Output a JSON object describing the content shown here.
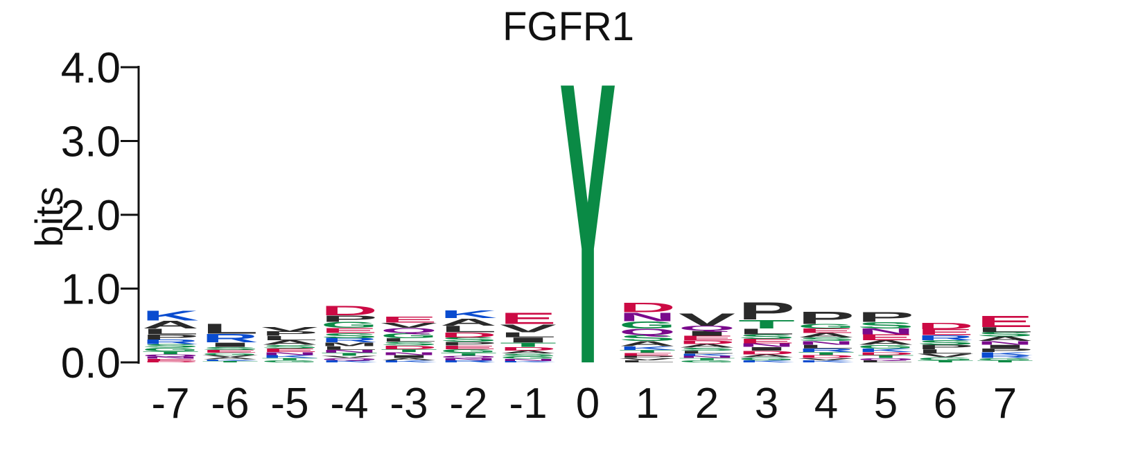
{
  "chart_data": {
    "type": "sequence-logo",
    "title": "FGFR1",
    "ylabel": "bits",
    "ylim": [
      0,
      4.0
    ],
    "yticks": [
      "0.0",
      "1.0",
      "2.0",
      "3.0",
      "4.0"
    ],
    "positions": [
      "-7",
      "-6",
      "-5",
      "-4",
      "-3",
      "-2",
      "-1",
      "0",
      "1",
      "2",
      "3",
      "4",
      "5",
      "6",
      "7"
    ],
    "color_scheme": {
      "hydrophobic": "#2a2a2a",
      "polar": "#0a8a45",
      "amide": "#7a0a8c",
      "basic": "#0a4ccf",
      "acidic": "#cc0a44"
    },
    "stacks": [
      {
        "position": "-7",
        "letters": [
          {
            "a": "K",
            "h": 0.14
          },
          {
            "a": "A",
            "h": 0.11
          },
          {
            "a": "L",
            "h": 0.08
          },
          {
            "a": "P",
            "h": 0.07
          },
          {
            "a": "R",
            "h": 0.06
          },
          {
            "a": "G",
            "h": 0.05
          },
          {
            "a": "S",
            "h": 0.05
          },
          {
            "a": "T",
            "h": 0.04
          },
          {
            "a": "E",
            "h": 0.03
          },
          {
            "a": "N",
            "h": 0.03
          },
          {
            "a": "Q",
            "h": 0.03
          },
          {
            "a": "D",
            "h": 0.02
          }
        ]
      },
      {
        "position": "-6",
        "letters": [
          {
            "a": "L",
            "h": 0.14
          },
          {
            "a": "R",
            "h": 0.12
          },
          {
            "a": "I",
            "h": 0.06
          },
          {
            "a": "E",
            "h": 0.04
          },
          {
            "a": "S",
            "h": 0.04
          },
          {
            "a": "A",
            "h": 0.03
          },
          {
            "a": "V",
            "h": 0.03
          },
          {
            "a": "G",
            "h": 0.03
          },
          {
            "a": "T",
            "h": 0.02
          },
          {
            "a": "K",
            "h": 0.02
          }
        ]
      },
      {
        "position": "-5",
        "letters": [
          {
            "a": "A",
            "h": 0.06
          },
          {
            "a": "L",
            "h": 0.06
          },
          {
            "a": "P",
            "h": 0.06
          },
          {
            "a": "V",
            "h": 0.06
          },
          {
            "a": "E",
            "h": 0.05
          },
          {
            "a": "S",
            "h": 0.05
          },
          {
            "a": "K",
            "h": 0.04
          },
          {
            "a": "N",
            "h": 0.04
          },
          {
            "a": "G",
            "h": 0.03
          },
          {
            "a": "T",
            "h": 0.03
          }
        ]
      },
      {
        "position": "-4",
        "letters": [
          {
            "a": "D",
            "h": 0.13
          },
          {
            "a": "P",
            "h": 0.09
          },
          {
            "a": "G",
            "h": 0.08
          },
          {
            "a": "S",
            "h": 0.07
          },
          {
            "a": "E",
            "h": 0.07
          },
          {
            "a": "R",
            "h": 0.06
          },
          {
            "a": "L",
            "h": 0.05
          },
          {
            "a": "M",
            "h": 0.05
          },
          {
            "a": "T",
            "h": 0.04
          },
          {
            "a": "N",
            "h": 0.04
          },
          {
            "a": "K",
            "h": 0.03
          },
          {
            "a": "Q",
            "h": 0.03
          },
          {
            "a": "V",
            "h": 0.03
          }
        ]
      },
      {
        "position": "-3",
        "letters": [
          {
            "a": "E",
            "h": 0.08
          },
          {
            "a": "G",
            "h": 0.07
          },
          {
            "a": "Q",
            "h": 0.07
          },
          {
            "a": "V",
            "h": 0.07
          },
          {
            "a": "D",
            "h": 0.05
          },
          {
            "a": "S",
            "h": 0.05
          },
          {
            "a": "L",
            "h": 0.05
          },
          {
            "a": "I",
            "h": 0.04
          },
          {
            "a": "N",
            "h": 0.04
          },
          {
            "a": "T",
            "h": 0.04
          },
          {
            "a": "K",
            "h": 0.03
          },
          {
            "a": "A",
            "h": 0.03
          }
        ]
      },
      {
        "position": "-2",
        "letters": [
          {
            "a": "A",
            "h": 0.1
          },
          {
            "a": "K",
            "h": 0.11
          },
          {
            "a": "L",
            "h": 0.09
          },
          {
            "a": "D",
            "h": 0.07
          },
          {
            "a": "S",
            "h": 0.06
          },
          {
            "a": "G",
            "h": 0.05
          },
          {
            "a": "E",
            "h": 0.05
          },
          {
            "a": "P",
            "h": 0.05
          },
          {
            "a": "T",
            "h": 0.04
          },
          {
            "a": "R",
            "h": 0.03
          },
          {
            "a": "N",
            "h": 0.03
          },
          {
            "a": "Q",
            "h": 0.03
          }
        ]
      },
      {
        "position": "-1",
        "letters": [
          {
            "a": "E",
            "h": 0.16
          },
          {
            "a": "V",
            "h": 0.11
          },
          {
            "a": "I",
            "h": 0.07
          },
          {
            "a": "L",
            "h": 0.07
          },
          {
            "a": "T",
            "h": 0.06
          },
          {
            "a": "D",
            "h": 0.05
          },
          {
            "a": "S",
            "h": 0.04
          },
          {
            "a": "A",
            "h": 0.04
          },
          {
            "a": "N",
            "h": 0.03
          },
          {
            "a": "G",
            "h": 0.03
          },
          {
            "a": "K",
            "h": 0.02
          }
        ]
      },
      {
        "position": "0",
        "letters": [
          {
            "a": "Y",
            "h": 3.98
          }
        ]
      },
      {
        "position": "1",
        "letters": [
          {
            "a": "D",
            "h": 0.13
          },
          {
            "a": "N",
            "h": 0.12
          },
          {
            "a": "G",
            "h": 0.1
          },
          {
            "a": "Q",
            "h": 0.09
          },
          {
            "a": "S",
            "h": 0.08
          },
          {
            "a": "A",
            "h": 0.07
          },
          {
            "a": "K",
            "h": 0.05
          },
          {
            "a": "E",
            "h": 0.04
          },
          {
            "a": "T",
            "h": 0.04
          },
          {
            "a": "L",
            "h": 0.03
          },
          {
            "a": "V",
            "h": 0.03
          },
          {
            "a": "P",
            "h": 0.03
          }
        ]
      },
      {
        "position": "2",
        "letters": [
          {
            "a": "V",
            "h": 0.17
          },
          {
            "a": "I",
            "h": 0.07
          },
          {
            "a": "Q",
            "h": 0.07
          },
          {
            "a": "E",
            "h": 0.06
          },
          {
            "a": "A",
            "h": 0.05
          },
          {
            "a": "D",
            "h": 0.05
          },
          {
            "a": "L",
            "h": 0.04
          },
          {
            "a": "S",
            "h": 0.04
          },
          {
            "a": "G",
            "h": 0.03
          },
          {
            "a": "T",
            "h": 0.03
          },
          {
            "a": "N",
            "h": 0.03
          },
          {
            "a": "K",
            "h": 0.03
          }
        ]
      },
      {
        "position": "3",
        "letters": [
          {
            "a": "P",
            "h": 0.24
          },
          {
            "a": "T",
            "h": 0.12
          },
          {
            "a": "L",
            "h": 0.08
          },
          {
            "a": "E",
            "h": 0.06
          },
          {
            "a": "S",
            "h": 0.06
          },
          {
            "a": "D",
            "h": 0.05
          },
          {
            "a": "I",
            "h": 0.05
          },
          {
            "a": "N",
            "h": 0.05
          },
          {
            "a": "G",
            "h": 0.04
          },
          {
            "a": "A",
            "h": 0.04
          },
          {
            "a": "K",
            "h": 0.03
          }
        ]
      },
      {
        "position": "4",
        "letters": [
          {
            "a": "P",
            "h": 0.17
          },
          {
            "a": "A",
            "h": 0.06
          },
          {
            "a": "E",
            "h": 0.06
          },
          {
            "a": "G",
            "h": 0.06
          },
          {
            "a": "R",
            "h": 0.05
          },
          {
            "a": "L",
            "h": 0.05
          },
          {
            "a": "N",
            "h": 0.05
          },
          {
            "a": "S",
            "h": 0.05
          },
          {
            "a": "D",
            "h": 0.04
          },
          {
            "a": "T",
            "h": 0.04
          },
          {
            "a": "K",
            "h": 0.03
          },
          {
            "a": "V",
            "h": 0.03
          }
        ]
      },
      {
        "position": "5",
        "letters": [
          {
            "a": "P",
            "h": 0.14
          },
          {
            "a": "S",
            "h": 0.09
          },
          {
            "a": "E",
            "h": 0.08
          },
          {
            "a": "N",
            "h": 0.08
          },
          {
            "a": "A",
            "h": 0.06
          },
          {
            "a": "K",
            "h": 0.05
          },
          {
            "a": "G",
            "h": 0.05
          },
          {
            "a": "T",
            "h": 0.04
          },
          {
            "a": "D",
            "h": 0.04
          },
          {
            "a": "L",
            "h": 0.03
          },
          {
            "a": "Q",
            "h": 0.03
          }
        ]
      },
      {
        "position": "6",
        "letters": [
          {
            "a": "D",
            "h": 0.09
          },
          {
            "a": "E",
            "h": 0.08
          },
          {
            "a": "R",
            "h": 0.07
          },
          {
            "a": "L",
            "h": 0.06
          },
          {
            "a": "P",
            "h": 0.06
          },
          {
            "a": "S",
            "h": 0.06
          },
          {
            "a": "V",
            "h": 0.05
          },
          {
            "a": "G",
            "h": 0.04
          },
          {
            "a": "T",
            "h": 0.03
          }
        ]
      },
      {
        "position": "7",
        "letters": [
          {
            "a": "E",
            "h": 0.16
          },
          {
            "a": "L",
            "h": 0.07
          },
          {
            "a": "A",
            "h": 0.06
          },
          {
            "a": "S",
            "h": 0.06
          },
          {
            "a": "P",
            "h": 0.05
          },
          {
            "a": "I",
            "h": 0.05
          },
          {
            "a": "N",
            "h": 0.05
          },
          {
            "a": "R",
            "h": 0.04
          },
          {
            "a": "K",
            "h": 0.04
          },
          {
            "a": "T",
            "h": 0.03
          },
          {
            "a": "G",
            "h": 0.03
          }
        ]
      }
    ]
  }
}
